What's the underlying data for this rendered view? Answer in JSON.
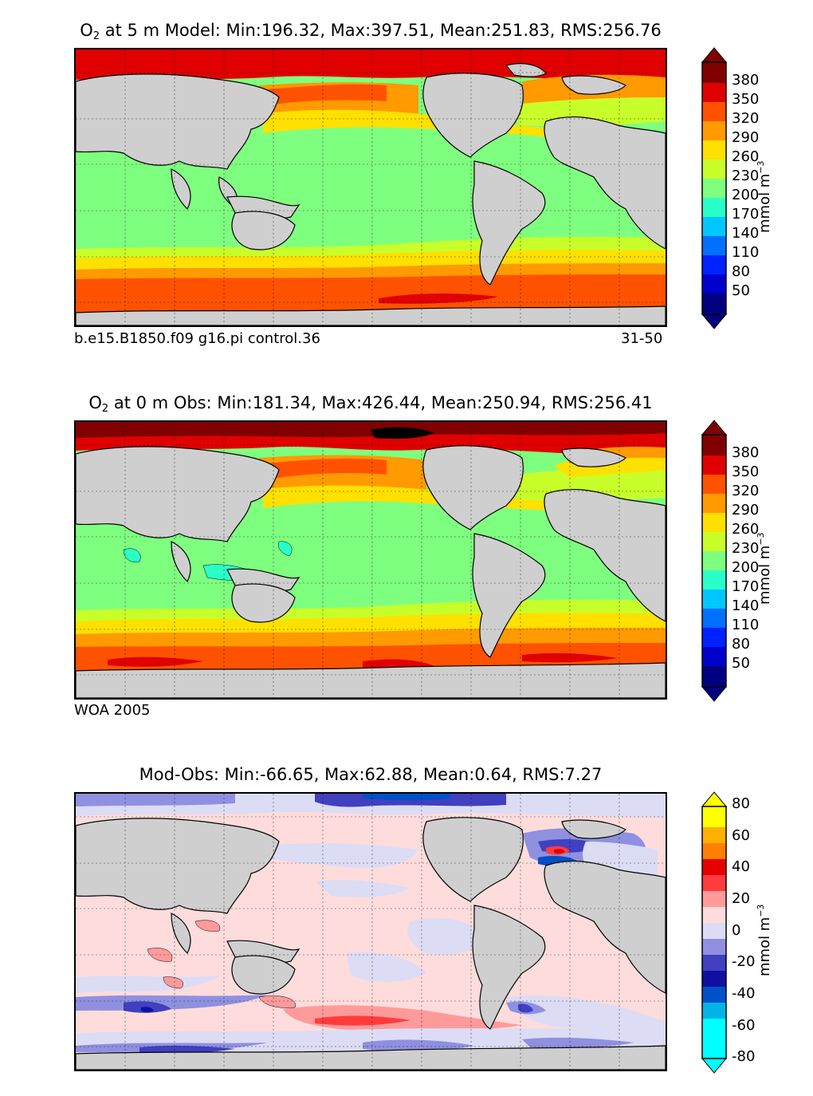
{
  "panels": [
    {
      "title_prefix": "O",
      "title_sub": "2",
      "title_rest": " at 5 m Model: Min:196.32, Max:397.51, Mean:251.83, RMS:256.76",
      "footer_left": "b.e15.B1850.f09 g16.pi control.36",
      "footer_right": "31-50",
      "colorbar_ticks": [
        "380",
        "350",
        "320",
        "290",
        "260",
        "230",
        "200",
        "170",
        "140",
        "110",
        "80",
        "50"
      ],
      "unit": "mmol m",
      "unit_exp": "−3"
    },
    {
      "title_prefix": "O",
      "title_sub": "2",
      "title_rest": " at 0 m Obs: Min:181.34, Max:426.44, Mean:250.94, RMS:256.41",
      "footer_left": "WOA 2005",
      "colorbar_ticks": [
        "380",
        "350",
        "320",
        "290",
        "260",
        "230",
        "200",
        "170",
        "140",
        "110",
        "80",
        "50"
      ],
      "unit": "mmol m",
      "unit_exp": "−3"
    },
    {
      "title": "Mod-Obs: Min:-66.65, Max:62.88, Mean:0.64, RMS:7.27",
      "colorbar_ticks": [
        "80",
        "60",
        "40",
        "20",
        "0",
        "-20",
        "-40",
        "-60",
        "-80"
      ],
      "unit": "mmol m",
      "unit_exp": "−3"
    }
  ],
  "colors": {
    "land": "#cfcfcf",
    "o2_scale": [
      "#000080",
      "#0000cd",
      "#0022ff",
      "#0070ff",
      "#00c8ff",
      "#2affc8",
      "#7fff7f",
      "#c8ff2a",
      "#ffe000",
      "#ff9a00",
      "#ff5200",
      "#e00000",
      "#800000"
    ],
    "diff_scale": [
      "#00ffff",
      "#00b4e6",
      "#0050c8",
      "#1010a0",
      "#4040c0",
      "#9090e0",
      "#dcdcf5",
      "#ffdcdc",
      "#ff9a9a",
      "#ff3c3c",
      "#e60000",
      "#ff8000",
      "#ffb000",
      "#ffff00"
    ]
  }
}
